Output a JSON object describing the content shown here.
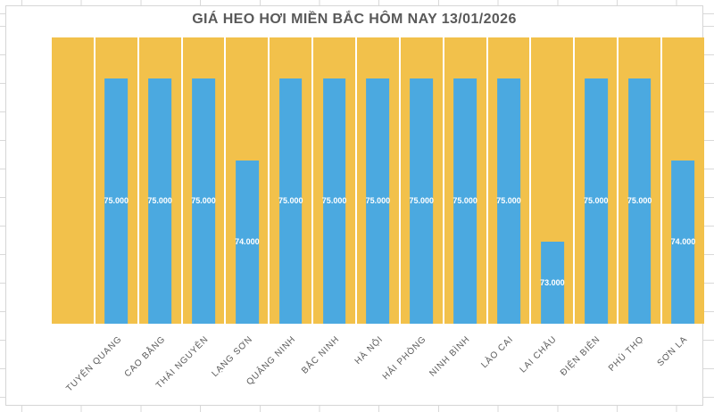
{
  "chart_data": {
    "type": "bar",
    "title": "GIÁ HEO HƠI MIỀN BẮC HÔM NAY 13/01/2026",
    "title_color": "#595959",
    "categories": [
      "",
      "TUYÊN QUANG",
      "CAO BẰNG",
      "THÁI NGUYÊN",
      "LẠNG SƠN",
      "QUẢNG NINH",
      "BẮC NINH",
      "HÀ NỘI",
      "HẢI PHÒNG",
      "NINH BÌNH",
      "LÀO CAI",
      "LAI CHÂU",
      "ĐIỆN BIÊN",
      "PHÚ THỌ",
      "SƠN LA"
    ],
    "series": [
      {
        "name": "nen-background",
        "background": true,
        "full_height": true,
        "color": "#F2C14B"
      },
      {
        "name": "gia-heo-hoi",
        "color": "#4BA9E0",
        "values": [
          null,
          75000,
          75000,
          75000,
          74000,
          75000,
          75000,
          75000,
          75000,
          75000,
          75000,
          73000,
          75000,
          75000,
          74000
        ],
        "labels": [
          null,
          "75.000",
          "75.000",
          "75.000",
          "74.000",
          "75.000",
          "75.000",
          "75.000",
          "75.000",
          "75.000",
          "75.000",
          "73.000",
          "75.000",
          "75.000",
          "74.000"
        ],
        "label_color": "#FFFFFF"
      }
    ],
    "xlabel": "",
    "ylabel": "",
    "ylim": [
      72000,
      75500
    ],
    "grid": false,
    "legend": false,
    "axis_label_color": "#595959"
  }
}
